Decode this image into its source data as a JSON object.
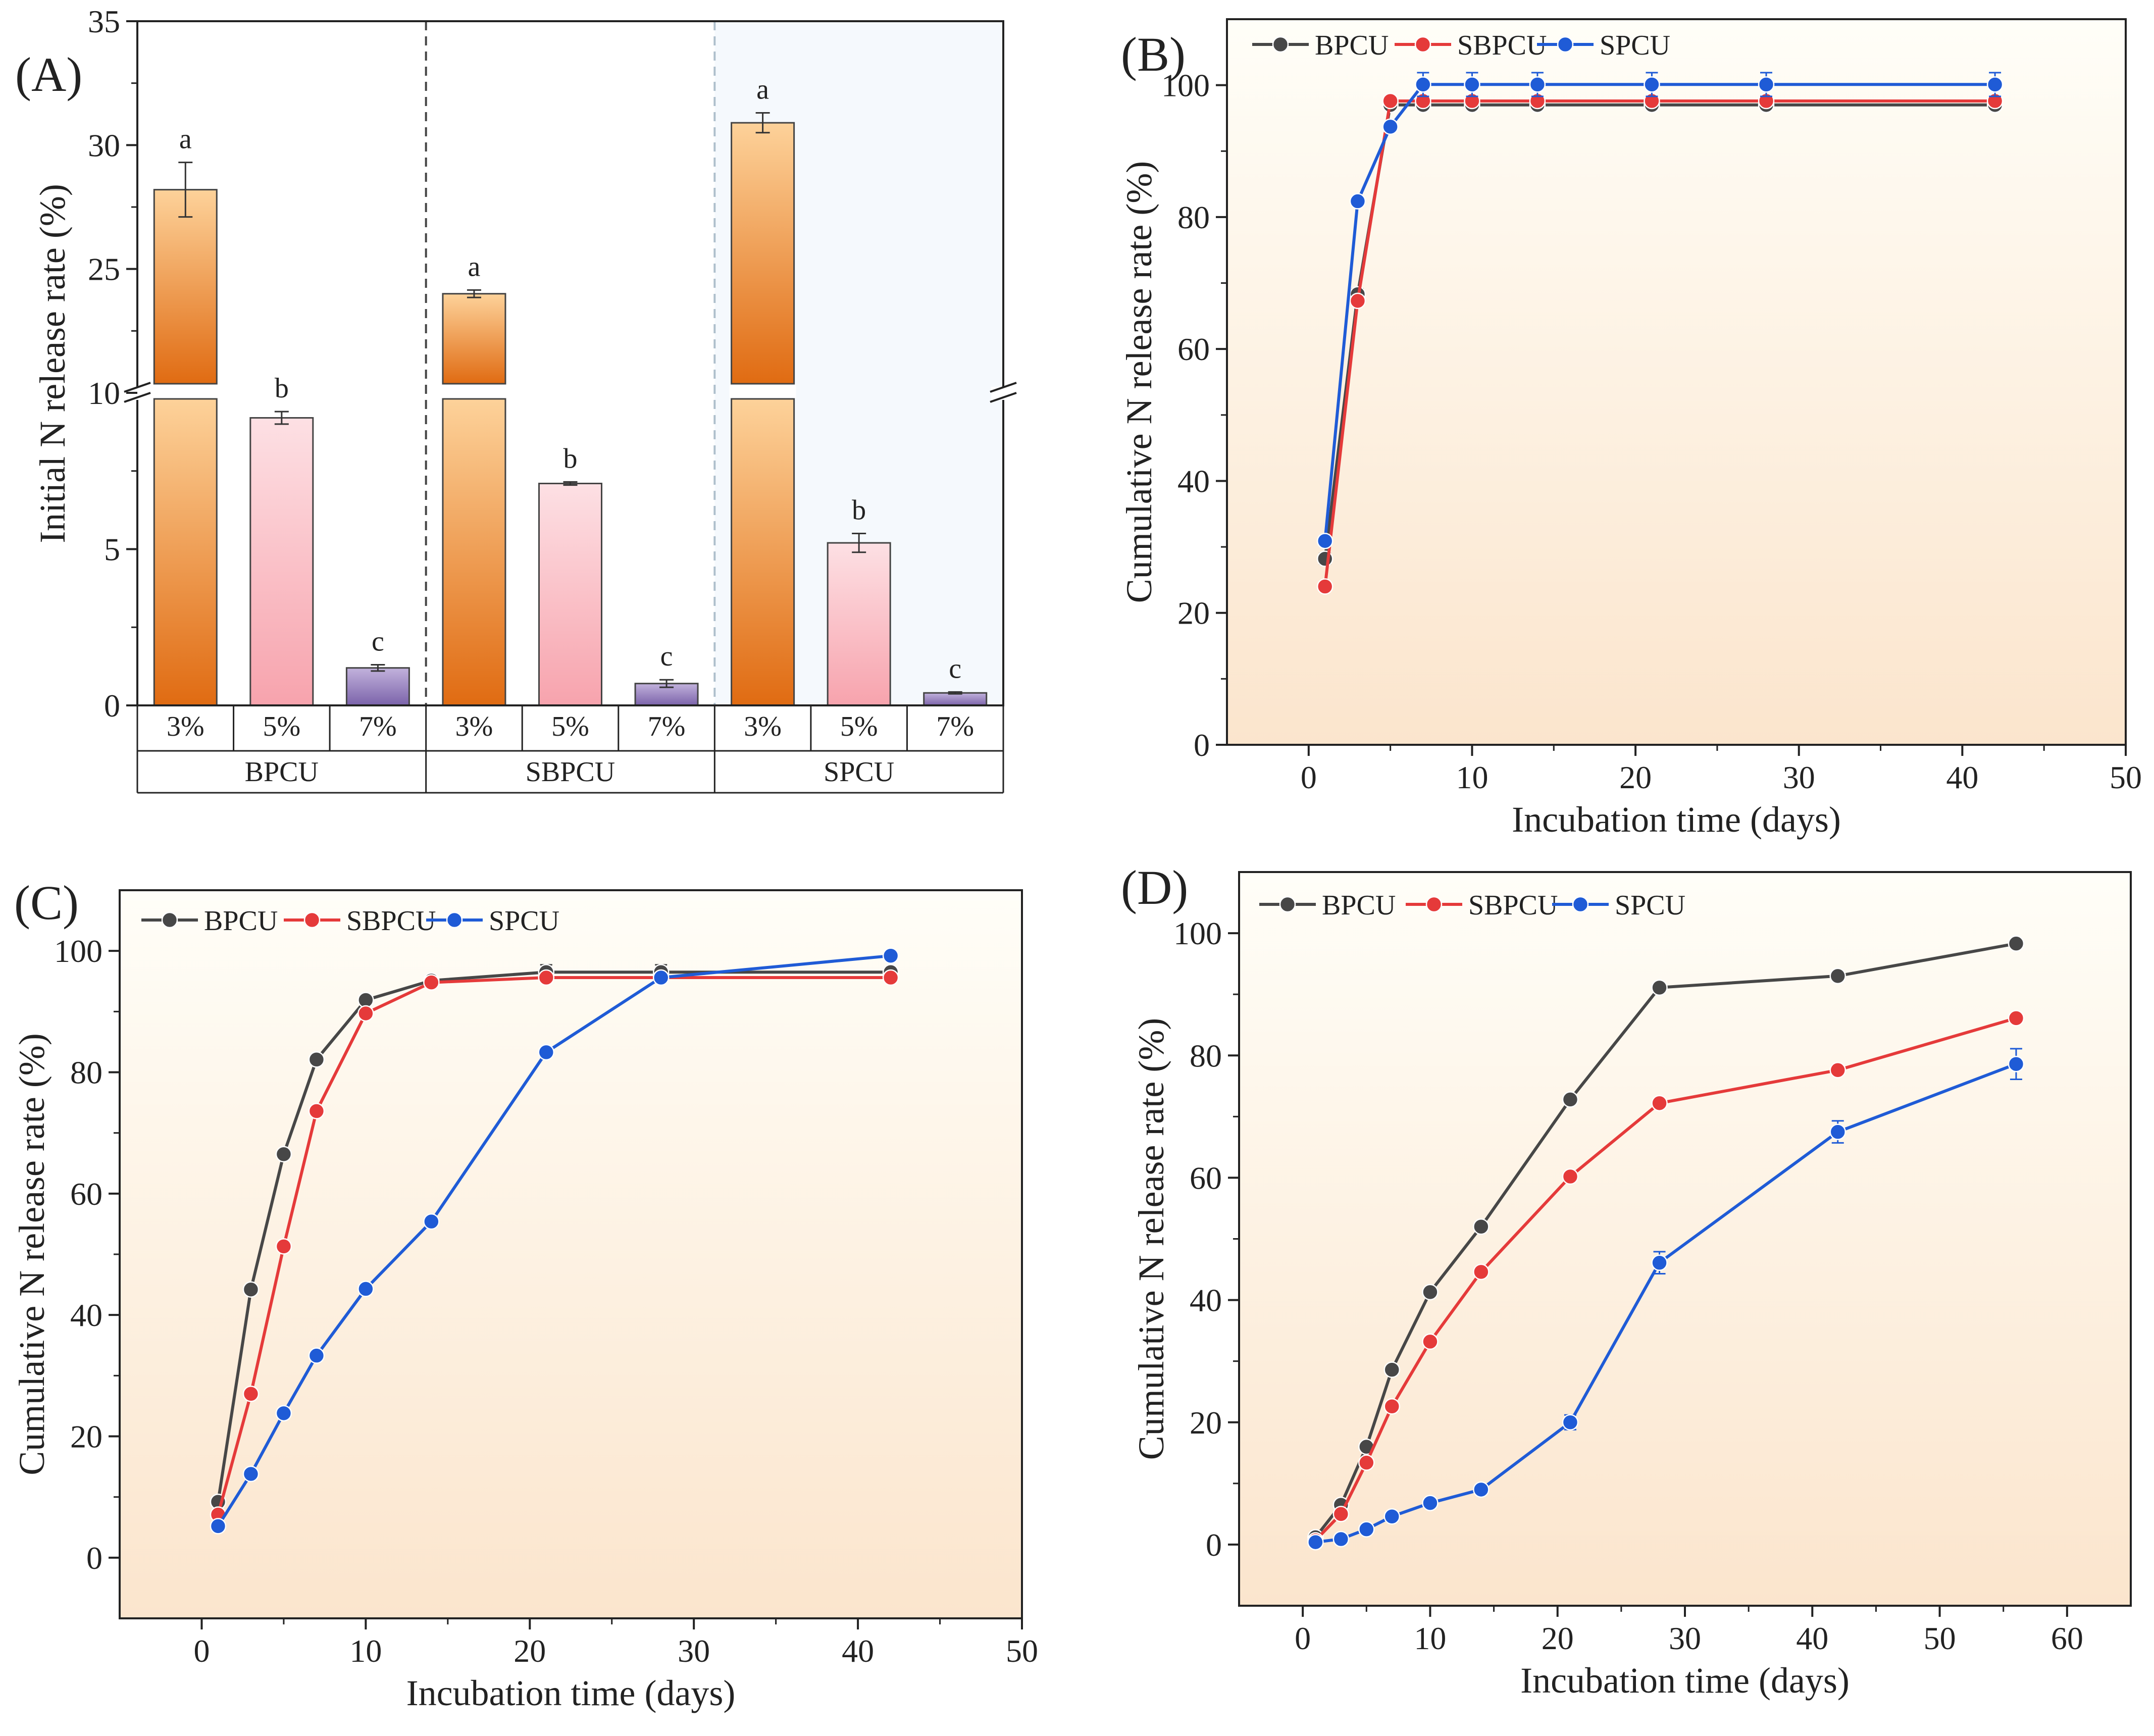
{
  "colors": {
    "bpcu": "#474747",
    "sbpcu": "#e53a3a",
    "spcu": "#1f5bd6",
    "bar_orange_top": "#fdd29a",
    "bar_orange_bottom": "#e06b12",
    "bar_pink_top": "#fde0e4",
    "bar_pink_bottom": "#f7a3ad",
    "bar_purple_top": "#c2b2dc",
    "bar_purple_bottom": "#7b63aa",
    "bg_warm_top": "#fffef8",
    "bg_warm_bottom": "#fbe5cd",
    "bg_spcu_panel": "#f5f9fd"
  },
  "chart_data": [
    {
      "panel": "(A)",
      "type": "bar",
      "ylabel": "Initial N release rate (%)",
      "ylim_lower": [
        0,
        10
      ],
      "ylim_upper": [
        20,
        35
      ],
      "yticks_lower": [
        "0",
        "5",
        "10"
      ],
      "yticks_upper": [
        "25",
        "30",
        "35"
      ],
      "groups": [
        {
          "name": "BPCU",
          "bars": [
            {
              "label": "3%",
              "value": 28.2,
              "err": 1.1,
              "letter": "a",
              "fill": "orange"
            },
            {
              "label": "5%",
              "value": 9.2,
              "err": 0.2,
              "letter": "b",
              "fill": "pink"
            },
            {
              "label": "7%",
              "value": 1.2,
              "err": 0.1,
              "letter": "c",
              "fill": "purple"
            }
          ]
        },
        {
          "name": "SBPCU",
          "bars": [
            {
              "label": "3%",
              "value": 24.0,
              "err": 0.15,
              "letter": "a",
              "fill": "orange"
            },
            {
              "label": "5%",
              "value": 7.1,
              "err": 0.05,
              "letter": "b",
              "fill": "pink"
            },
            {
              "label": "7%",
              "value": 0.7,
              "err": 0.12,
              "letter": "c",
              "fill": "purple"
            }
          ]
        },
        {
          "name": "SPCU",
          "bars": [
            {
              "label": "3%",
              "value": 30.9,
              "err": 0.4,
              "letter": "a",
              "fill": "orange"
            },
            {
              "label": "5%",
              "value": 5.2,
              "err": 0.3,
              "letter": "b",
              "fill": "pink"
            },
            {
              "label": "7%",
              "value": 0.4,
              "err": 0.03,
              "letter": "c",
              "fill": "purple"
            }
          ]
        }
      ]
    },
    {
      "panel": "(B)",
      "type": "line",
      "xlabel": "Incubation time (days)",
      "ylabel": "Cumulative N release rate (%)",
      "xlim": [
        -5,
        50
      ],
      "ylim": [
        0,
        110
      ],
      "xticks": [
        0,
        10,
        20,
        30,
        40,
        50
      ],
      "yticks": [
        0,
        20,
        40,
        60,
        80,
        100
      ],
      "x": [
        1,
        3,
        5,
        7,
        10,
        14,
        21,
        28,
        42
      ],
      "series": [
        {
          "name": "BPCU",
          "values": [
            28.2,
            68.3,
            97.0,
            97.0,
            97.0,
            97.0,
            97.0,
            97.0,
            97.0
          ],
          "errs": [
            0.8,
            0.8,
            0.5,
            0.6,
            0.6,
            0.6,
            0.6,
            0.6,
            0.6
          ]
        },
        {
          "name": "SBPCU",
          "values": [
            24.0,
            67.3,
            97.6,
            97.6,
            97.6,
            97.6,
            97.6,
            97.6,
            97.6
          ],
          "errs": [
            0.5,
            0.6,
            0.5,
            0.5,
            0.5,
            0.5,
            0.5,
            0.5,
            0.5
          ]
        },
        {
          "name": "SPCU",
          "values": [
            30.9,
            82.4,
            93.7,
            100.1,
            100.1,
            100.1,
            100.1,
            100.1,
            100.1
          ],
          "errs": [
            0.6,
            0.7,
            0.7,
            1.8,
            1.8,
            1.8,
            1.8,
            1.8,
            1.8
          ]
        }
      ]
    },
    {
      "panel": "(C)",
      "type": "line",
      "xlabel": "Incubation time (days)",
      "ylabel": "Cumulative N release rate (%)",
      "xlim": [
        -5,
        50
      ],
      "ylim": [
        -10,
        110
      ],
      "xticks": [
        0,
        10,
        20,
        30,
        40,
        50
      ],
      "yticks": [
        0,
        20,
        40,
        60,
        80,
        100
      ],
      "x": [
        1,
        3,
        5,
        7,
        10,
        14,
        21,
        28,
        42
      ],
      "series": [
        {
          "name": "BPCU",
          "values": [
            9.2,
            44.2,
            66.5,
            82.1,
            91.9,
            95.1,
            96.5,
            96.5,
            96.5
          ],
          "errs": [
            0.4,
            0.5,
            0.6,
            0.6,
            0.7,
            0.7,
            1.2,
            1.2,
            0.8
          ]
        },
        {
          "name": "SBPCU",
          "values": [
            7.1,
            27.0,
            51.3,
            73.6,
            89.7,
            94.8,
            95.6,
            95.6,
            95.6
          ],
          "errs": [
            0.3,
            0.5,
            0.6,
            0.6,
            0.7,
            0.7,
            0.5,
            0.5,
            0.5
          ]
        },
        {
          "name": "SPCU",
          "values": [
            5.2,
            13.8,
            23.8,
            33.3,
            44.3,
            55.4,
            83.3,
            95.6,
            99.2
          ],
          "errs": [
            0.3,
            0.4,
            0.4,
            0.5,
            0.5,
            0.5,
            0.6,
            0.6,
            0.6
          ]
        }
      ]
    },
    {
      "panel": "(D)",
      "type": "line",
      "xlabel": "Incubation time (days)",
      "ylabel": "Cumulative N release rate (%)",
      "xlim": [
        -5,
        65
      ],
      "ylim": [
        -10,
        110
      ],
      "xticks": [
        0,
        10,
        20,
        30,
        40,
        50,
        60
      ],
      "yticks": [
        0,
        20,
        40,
        60,
        80,
        100
      ],
      "x": [
        1,
        3,
        5,
        7,
        10,
        14,
        21,
        28,
        42,
        56
      ],
      "series": [
        {
          "name": "BPCU",
          "values": [
            1.2,
            6.5,
            16.0,
            28.6,
            41.3,
            52.0,
            72.8,
            91.1,
            93.0,
            98.3
          ],
          "errs": [
            0.2,
            0.3,
            0.4,
            0.5,
            0.5,
            0.6,
            0.6,
            0.6,
            0.6,
            0.7
          ]
        },
        {
          "name": "SBPCU",
          "values": [
            0.7,
            5.0,
            13.4,
            22.6,
            33.2,
            44.6,
            60.2,
            72.2,
            77.6,
            86.1
          ],
          "errs": [
            0.2,
            0.3,
            0.4,
            0.5,
            0.5,
            0.5,
            0.6,
            0.6,
            0.6,
            0.7
          ]
        },
        {
          "name": "SPCU",
          "values": [
            0.4,
            0.9,
            2.5,
            4.6,
            6.8,
            9.0,
            20.0,
            46.1,
            67.5,
            78.6
          ],
          "errs": [
            0.1,
            0.2,
            0.3,
            0.4,
            0.5,
            0.6,
            1.2,
            1.8,
            1.8,
            2.5
          ]
        }
      ]
    }
  ]
}
